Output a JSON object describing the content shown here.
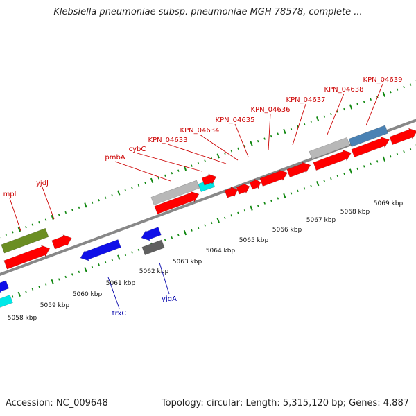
{
  "title": "Klebsiella pneumoniae subsp. pneumoniae MGH 78578, complete ...",
  "footer": {
    "accession": "Accession: NC_009648",
    "topology": "Topology: circular; Length: 5,315,120 bp; Genes: 4,887"
  },
  "colors": {
    "cds": "#ff0000",
    "trna": "#00e8e8",
    "misc": "#b8b8b8",
    "blue": "#1010e8",
    "olive": "#6b8e23",
    "steelblue": "#4a82b4",
    "grey": "#606060",
    "upper_label": "#cc0000",
    "lower_label": "#0000aa",
    "tick": "#118811",
    "backbone": "#888888"
  },
  "scale_ticks": [
    {
      "label": "5058 kbp",
      "kbp": 5058
    },
    {
      "label": "5059 kbp",
      "kbp": 5059
    },
    {
      "label": "5060 kbp",
      "kbp": 5060
    },
    {
      "label": "5061 kbp",
      "kbp": 5061
    },
    {
      "label": "5062 kbp",
      "kbp": 5062
    },
    {
      "label": "5063 kbp",
      "kbp": 5063
    },
    {
      "label": "5064 kbp",
      "kbp": 5064
    },
    {
      "label": "5065 kbp",
      "kbp": 5065
    },
    {
      "label": "5066 kbp",
      "kbp": 5066
    },
    {
      "label": "5067 kbp",
      "kbp": 5067
    },
    {
      "label": "5068 kbp",
      "kbp": 5068
    },
    {
      "label": "5069 kbp",
      "kbp": 5069
    }
  ],
  "upper_labels": [
    {
      "text": "mpl"
    },
    {
      "text": "yjdJ"
    },
    {
      "text": "pmbA"
    },
    {
      "text": "cybC"
    },
    {
      "text": "KPN_04633"
    },
    {
      "text": "KPN_04634"
    },
    {
      "text": "KPN_04635"
    },
    {
      "text": "KPN_04636"
    },
    {
      "text": "KPN_04637"
    },
    {
      "text": "KPN_04638"
    },
    {
      "text": "KPN_04639"
    }
  ],
  "lower_labels": [
    {
      "text": "trxC"
    },
    {
      "text": "yjgA"
    }
  ]
}
